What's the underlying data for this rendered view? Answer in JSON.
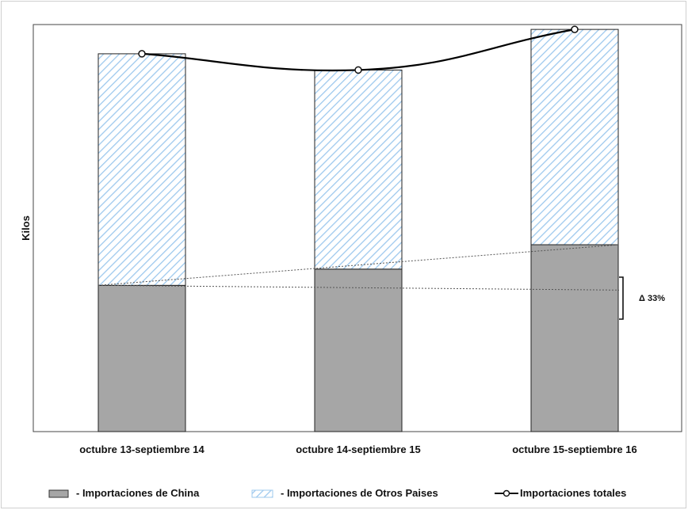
{
  "chart_data": {
    "type": "bar",
    "stacked": true,
    "categories": [
      "octubre 13-septiembre 14",
      "octubre 14-septiembre 15",
      "octubre 15-septiembre 16"
    ],
    "ylabel": "Kilos",
    "xlabel": "",
    "ylim": [
      0,
      100
    ],
    "grid": false,
    "series": [
      {
        "name": "- Importaciones de China",
        "values": [
          36,
          40,
          46
        ],
        "color": "#a6a6a6",
        "pattern": "solid"
      },
      {
        "name": "- Importaciones de Otros Paises",
        "values": [
          57,
          49,
          53
        ],
        "color": "#9ec9ee",
        "pattern": "diagonal-hatch"
      }
    ],
    "line": {
      "name": "Importaciones totales",
      "values": [
        93,
        89,
        99
      ],
      "color": "#000000"
    },
    "annotation": {
      "text": "Δ 33%"
    },
    "legend_position": "bottom"
  }
}
